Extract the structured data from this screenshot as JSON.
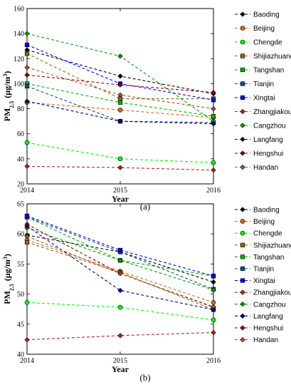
{
  "panels": [
    {
      "label": "(a)",
      "xlabel": "Year",
      "ylabel_main": "PM",
      "ylabel_sub": "2.5",
      "ylabel_unit": "(μg/m",
      "ylabel_sup": "3",
      "ylabel_end": ")"
    },
    {
      "label": "(b)",
      "xlabel": "Year",
      "ylabel_main": "PM",
      "ylabel_sub": "2.5",
      "ylabel_unit": "(μg/m",
      "ylabel_sup": "3",
      "ylabel_end": ")"
    }
  ],
  "chart_data": [
    {
      "type": "line",
      "x": [
        2014,
        2015,
        2016
      ],
      "xlabel": "Year",
      "ylabel": "PM2.5 (μg/m3)",
      "ylim": [
        20,
        160
      ],
      "yticks": [
        20,
        40,
        60,
        80,
        100,
        120,
        140,
        160
      ],
      "xticks": [
        "2014",
        "2015",
        "2016"
      ],
      "legend_position": "right",
      "series": [
        {
          "name": "Baoding",
          "color": "#000000",
          "marker": "diamond",
          "values": [
            127,
            106,
            92
          ]
        },
        {
          "name": "Beijing",
          "color": "#d2691e",
          "marker": "circle",
          "values": [
            85,
            79,
            73
          ]
        },
        {
          "name": "Chengde",
          "color": "#00ff00",
          "marker": "circle",
          "values": [
            53,
            40,
            37
          ]
        },
        {
          "name": "Shijiazhuang",
          "color": "#8b6914",
          "marker": "square",
          "values": [
            124,
            88,
            88
          ]
        },
        {
          "name": "Tangshan",
          "color": "#00b000",
          "marker": "square",
          "values": [
            100,
            85,
            74
          ]
        },
        {
          "name": "Tianjin",
          "color": "#1a4a7a",
          "marker": "square",
          "values": [
            98,
            70,
            69
          ]
        },
        {
          "name": "Xingtai",
          "color": "#0000ff",
          "marker": "square",
          "values": [
            131,
            100,
            87
          ]
        },
        {
          "name": "Zhangjiakou",
          "color": "#b22222",
          "marker": "diamond",
          "values": [
            34,
            33,
            31
          ]
        },
        {
          "name": "Cangzhou",
          "color": "#00a000",
          "marker": "diamond",
          "values": [
            140,
            122,
            70
          ]
        },
        {
          "name": "Langfang",
          "color": "#00008b",
          "marker": "diamond",
          "values": [
            86,
            70,
            68
          ]
        },
        {
          "name": "Hengshui",
          "color": "#8b0000",
          "marker": "diamond",
          "values": [
            107,
            99,
            93
          ]
        },
        {
          "name": "Handan",
          "color": "#a0522d",
          "marker": "diamond",
          "values": [
            113,
            91,
            80
          ]
        }
      ]
    },
    {
      "type": "line",
      "x": [
        2014,
        2015,
        2016
      ],
      "xlabel": "Year",
      "ylabel": "PM2.5 (μg/m3)",
      "ylim": [
        40,
        65
      ],
      "yticks": [
        40,
        45,
        50,
        55,
        60,
        65
      ],
      "xticks": [
        "2014",
        "2015",
        "2016"
      ],
      "legend_position": "right",
      "series": [
        {
          "name": "Baoding",
          "color": "#000000",
          "marker": "diamond",
          "values": [
            59.8,
            57.0,
            52.0
          ]
        },
        {
          "name": "Beijing",
          "color": "#d2691e",
          "marker": "circle",
          "values": [
            59.0,
            53.8,
            48.6
          ]
        },
        {
          "name": "Chengde",
          "color": "#00ff00",
          "marker": "circle",
          "values": [
            48.6,
            47.8,
            45.7
          ]
        },
        {
          "name": "Shijiazhuang",
          "color": "#8b6914",
          "marker": "square",
          "values": [
            58.6,
            53.6,
            47.4
          ]
        },
        {
          "name": "Tangshan",
          "color": "#00b000",
          "marker": "square",
          "values": [
            62.8,
            55.6,
            53.0
          ]
        },
        {
          "name": "Tianjin",
          "color": "#1a4a7a",
          "marker": "square",
          "values": [
            62.8,
            57.0,
            50.8
          ]
        },
        {
          "name": "Xingtai",
          "color": "#0000ff",
          "marker": "square",
          "values": [
            63.0,
            57.3,
            53.0
          ]
        },
        {
          "name": "Zhangjiakou",
          "color": "#b22222",
          "marker": "diamond",
          "values": [
            42.4,
            43.1,
            43.6
          ]
        },
        {
          "name": "Cangzhou",
          "color": "#00a000",
          "marker": "diamond",
          "values": [
            61.0,
            55.6,
            50.7
          ]
        },
        {
          "name": "Langfang",
          "color": "#00008b",
          "marker": "diamond",
          "values": [
            61.3,
            50.6,
            47.4
          ]
        },
        {
          "name": "Hengshui",
          "color": "#8b0000",
          "marker": "diamond",
          "values": [
            61.6,
            53.4,
            47.8
          ]
        },
        {
          "name": "Handan",
          "color": "#a0522d",
          "marker": "diamond",
          "values": [
            59.6,
            53.4,
            47.9
          ]
        }
      ]
    }
  ]
}
